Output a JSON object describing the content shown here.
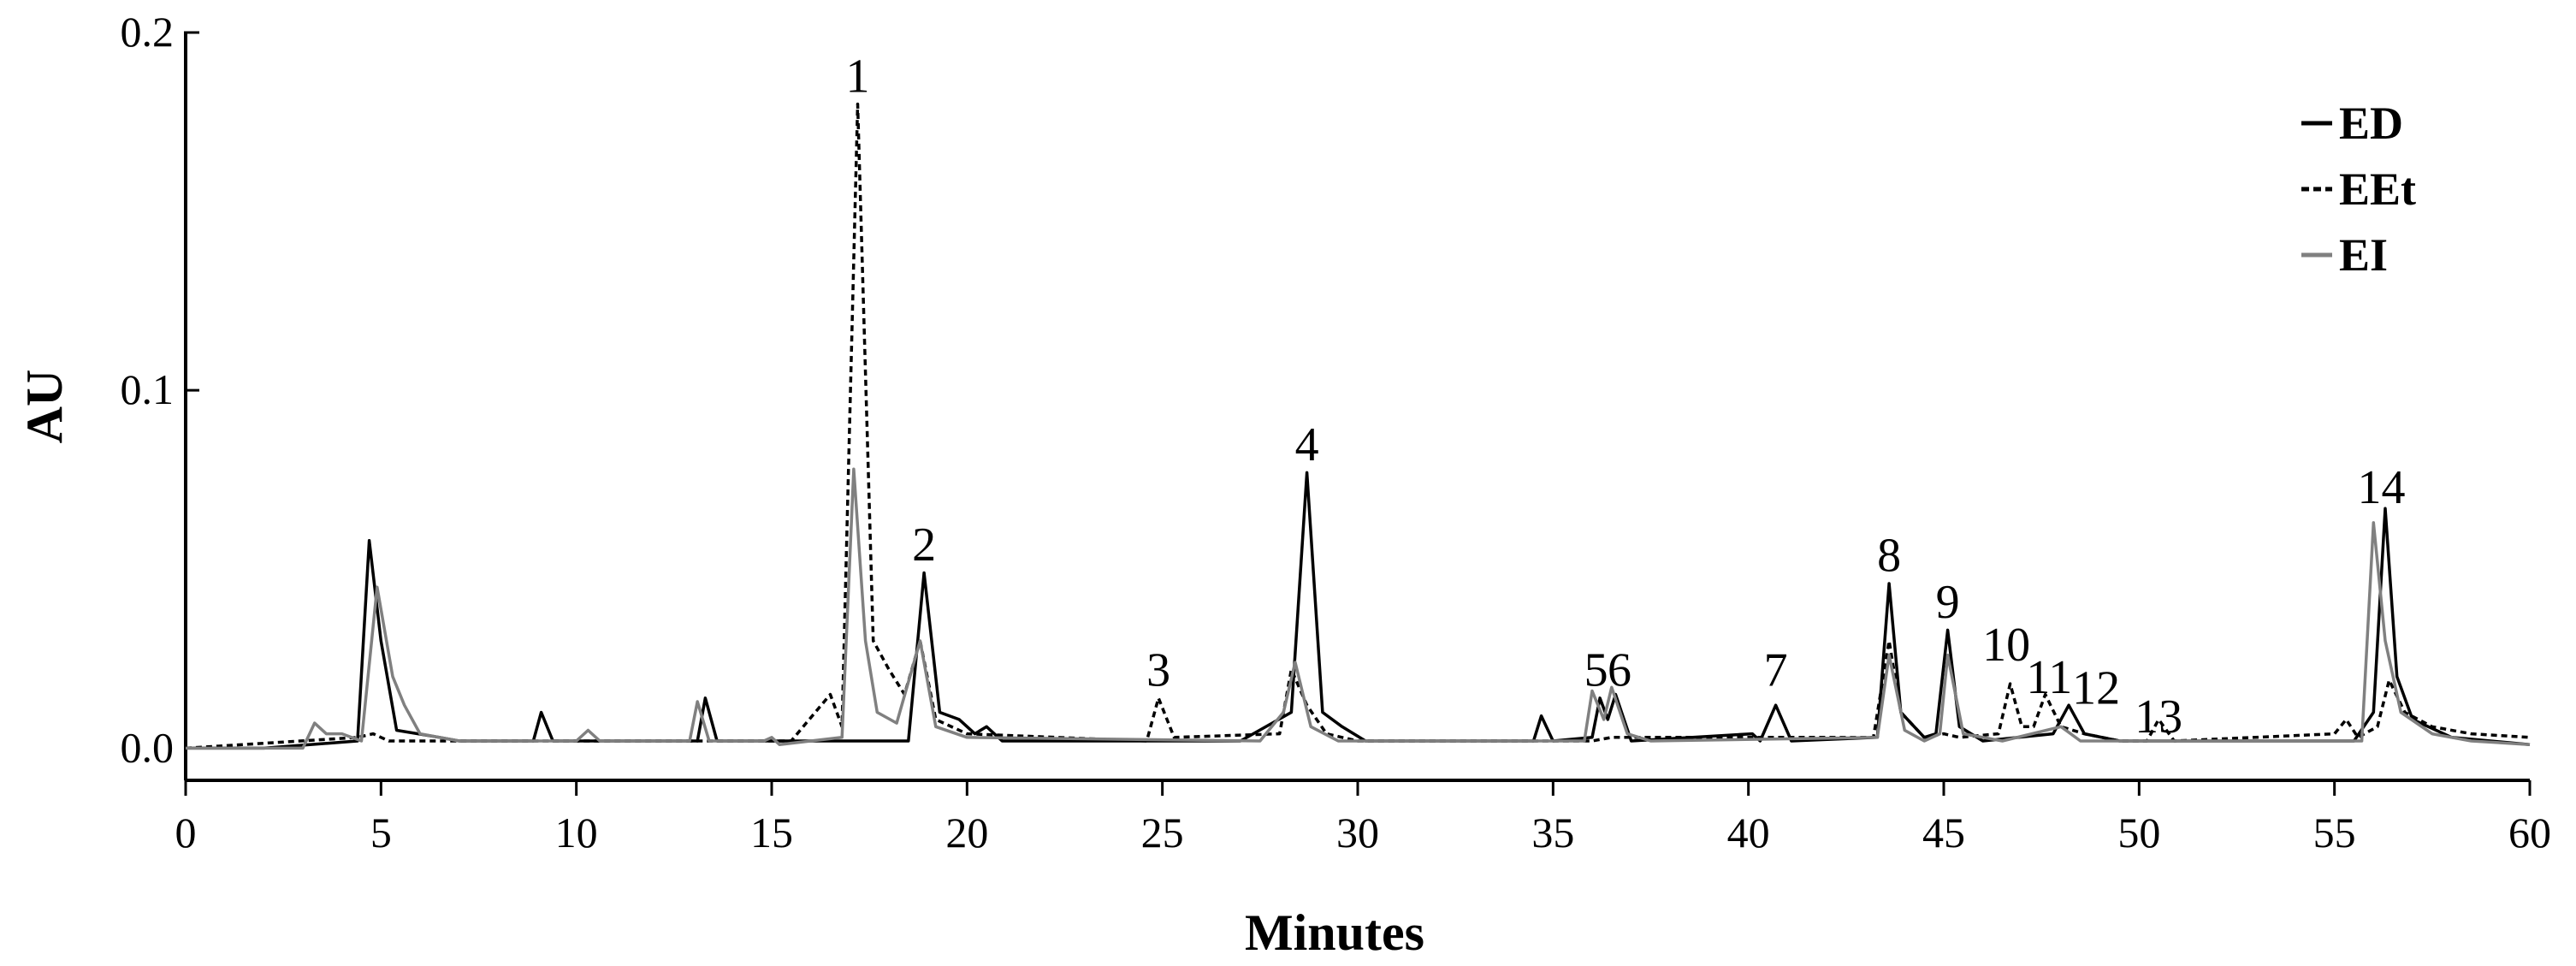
{
  "chart_data": {
    "type": "line",
    "xlabel": "Minutes",
    "ylabel": "AU",
    "xlim": [
      0,
      60
    ],
    "xticks": [
      0,
      5,
      10,
      15,
      20,
      25,
      30,
      35,
      40,
      45,
      50,
      55,
      60
    ],
    "ylim": [
      -0.009,
      0.2
    ],
    "yticks": [
      {
        "value": 0,
        "label": "0.0"
      },
      0.1,
      0.2
    ],
    "legend": "top-right",
    "series": [
      {
        "name": "ED",
        "color": "#000000",
        "dash": false,
        "x": [
          0,
          2,
          4.4,
          4.7,
          5.0,
          5.4,
          6.5,
          7,
          8.9,
          9.1,
          9.4,
          13.1,
          13.3,
          13.6,
          17,
          18.5,
          18.9,
          19.3,
          19.8,
          20.2,
          20.5,
          20.9,
          27,
          28.3,
          28.7,
          29.1,
          29.6,
          30.2,
          34.5,
          34.7,
          35,
          36,
          36.2,
          36.4,
          36.6,
          37,
          40.1,
          40.3,
          40.7,
          41.1,
          43.3,
          43.6,
          43.9,
          44.5,
          44.8,
          45.1,
          45.4,
          46,
          47.8,
          48.2,
          48.6,
          49.5,
          55.5,
          56,
          56.3,
          56.6,
          57,
          58,
          60
        ],
        "values": [
          0,
          0,
          0.002,
          0.058,
          0.03,
          0.005,
          0.003,
          0.002,
          0.002,
          0.01,
          0.002,
          0.002,
          0.014,
          0.002,
          0.002,
          0.002,
          0.049,
          0.01,
          0.008,
          0.004,
          0.006,
          0.002,
          0.002,
          0.01,
          0.077,
          0.01,
          0.006,
          0.002,
          0.002,
          0.009,
          0.002,
          0.003,
          0.014,
          0.008,
          0.015,
          0.002,
          0.004,
          0.002,
          0.012,
          0.002,
          0.003,
          0.046,
          0.01,
          0.003,
          0.004,
          0.033,
          0.006,
          0.002,
          0.004,
          0.012,
          0.004,
          0.002,
          0.002,
          0.01,
          0.067,
          0.02,
          0.008,
          0.003,
          0.001
        ]
      },
      {
        "name": "EEt",
        "color": "#000000",
        "dash": true,
        "x": [
          0,
          4.4,
          4.8,
          5.2,
          15.5,
          16.5,
          16.8,
          17.2,
          17.6,
          18,
          18.4,
          18.8,
          19.2,
          20,
          24.6,
          24.9,
          25.3,
          28,
          28.3,
          28.7,
          29.2,
          30,
          36,
          36.5,
          43.2,
          43.6,
          43.9,
          44.5,
          45,
          45.4,
          46.4,
          46.7,
          47,
          47.3,
          47.6,
          48,
          48.6,
          49.5,
          50.2,
          50.5,
          50.9,
          55,
          55.3,
          55.6,
          56.1,
          56.4,
          56.8,
          57.5,
          58.5,
          60
        ],
        "values": [
          0,
          0.003,
          0.004,
          0.002,
          0.002,
          0.015,
          0.006,
          0.18,
          0.03,
          0.022,
          0.015,
          0.03,
          0.008,
          0.004,
          0.002,
          0.014,
          0.003,
          0.004,
          0.022,
          0.012,
          0.004,
          0.002,
          0.002,
          0.003,
          0.003,
          0.03,
          0.01,
          0.003,
          0.004,
          0.003,
          0.004,
          0.018,
          0.006,
          0.006,
          0.015,
          0.006,
          0.004,
          0.002,
          0.002,
          0.008,
          0.002,
          0.004,
          0.008,
          0.003,
          0.006,
          0.019,
          0.01,
          0.006,
          0.004,
          0.003
        ]
      },
      {
        "name": "EI",
        "color": "#808080",
        "dash": false,
        "x": [
          0,
          3,
          3.3,
          3.6,
          4,
          4.5,
          4.9,
          5.3,
          5.6,
          6,
          7,
          10,
          10.3,
          10.6,
          12.9,
          13.1,
          13.4,
          14.8,
          15,
          15.2,
          16.8,
          17.1,
          17.4,
          17.7,
          18.2,
          18.8,
          19.2,
          20,
          27.5,
          28.1,
          28.4,
          28.8,
          29.5,
          35.8,
          36,
          36.3,
          36.5,
          36.9,
          37.5,
          43.3,
          43.6,
          44,
          44.5,
          44.9,
          45.1,
          45.5,
          46.5,
          48,
          48.5,
          55.7,
          56,
          56.3,
          56.7,
          57.5,
          58.5,
          60
        ],
        "values": [
          0,
          0,
          0.007,
          0.004,
          0.004,
          0.002,
          0.045,
          0.02,
          0.012,
          0.004,
          0.002,
          0.002,
          0.005,
          0.002,
          0.002,
          0.013,
          0.002,
          0.002,
          0.003,
          0.001,
          0.003,
          0.078,
          0.03,
          0.01,
          0.007,
          0.03,
          0.006,
          0.003,
          0.002,
          0.01,
          0.024,
          0.006,
          0.002,
          0.002,
          0.016,
          0.008,
          0.017,
          0.004,
          0.002,
          0.003,
          0.026,
          0.005,
          0.002,
          0.004,
          0.026,
          0.004,
          0.002,
          0.006,
          0.002,
          0.002,
          0.063,
          0.03,
          0.01,
          0.004,
          0.002,
          0.001
        ]
      }
    ],
    "annotations": [
      {
        "text": "1",
        "x": 17.2,
        "y": 0.182
      },
      {
        "text": "2",
        "x": 18.9,
        "y": 0.051
      },
      {
        "text": "3",
        "x": 24.9,
        "y": 0.016
      },
      {
        "text": "4",
        "x": 28.7,
        "y": 0.079
      },
      {
        "text": "5",
        "x": 36.1,
        "y": 0.016
      },
      {
        "text": "6",
        "x": 36.7,
        "y": 0.016
      },
      {
        "text": "7",
        "x": 40.7,
        "y": 0.016
      },
      {
        "text": "8",
        "x": 43.6,
        "y": 0.048
      },
      {
        "text": "9",
        "x": 45.1,
        "y": 0.035
      },
      {
        "text": "10",
        "x": 46.6,
        "y": 0.023
      },
      {
        "text": "11",
        "x": 47.7,
        "y": 0.014
      },
      {
        "text": "12",
        "x": 48.9,
        "y": 0.011
      },
      {
        "text": "13",
        "x": 50.5,
        "y": 0.003
      },
      {
        "text": "14",
        "x": 56.2,
        "y": 0.067
      }
    ]
  }
}
